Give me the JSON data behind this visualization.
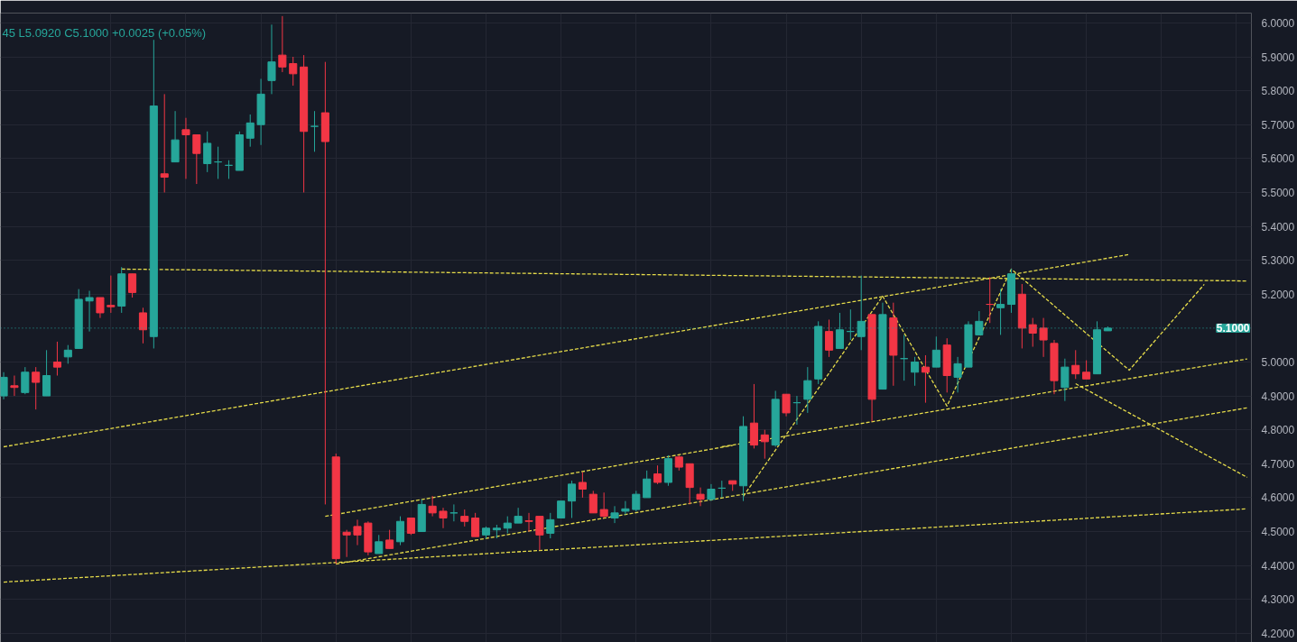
{
  "chart_data": {
    "type": "candlestick",
    "categories": [
      null,
      null,
      null,
      null,
      null,
      null,
      null,
      null,
      null,
      null,
      null,
      null,
      null,
      null,
      null,
      null,
      null,
      null,
      null,
      null,
      null,
      null,
      null,
      null,
      null,
      null,
      null,
      null,
      null,
      null,
      null,
      null,
      null,
      null,
      null,
      null,
      null,
      null,
      null,
      null,
      null,
      null,
      null,
      null,
      null,
      null,
      null,
      null,
      null,
      null,
      null,
      null,
      null,
      null,
      null,
      null,
      null,
      null,
      null,
      null,
      null,
      null,
      null,
      null,
      null,
      null,
      null,
      null,
      null,
      null,
      null,
      null,
      null,
      null,
      null,
      null,
      null,
      null,
      null,
      null,
      null,
      null,
      null,
      null,
      null,
      null,
      null,
      null,
      null,
      null,
      null,
      null,
      null,
      null,
      null,
      null,
      null,
      null,
      null,
      null,
      null,
      null,
      null,
      null,
      null,
      null,
      null,
      null,
      null,
      null,
      null,
      null,
      null,
      null,
      null,
      null,
      null
    ],
    "ohlc": [
      [
        4.9,
        4.97,
        4.89,
        4.955
      ],
      [
        4.93,
        4.96,
        4.9,
        4.925
      ],
      [
        4.91,
        4.985,
        4.905,
        4.97
      ],
      [
        4.97,
        4.985,
        4.86,
        4.94
      ],
      [
        4.9,
        5.035,
        4.9,
        4.96
      ],
      [
        5.0,
        5.06,
        4.96,
        4.985
      ],
      [
        5.015,
        5.05,
        4.995,
        5.035
      ],
      [
        5.04,
        5.215,
        5.04,
        5.185
      ],
      [
        5.18,
        5.21,
        5.09,
        5.19
      ],
      [
        5.19,
        5.19,
        5.13,
        5.145
      ],
      [
        5.167,
        5.255,
        5.145,
        5.163
      ],
      [
        5.165,
        5.28,
        5.145,
        5.26
      ],
      [
        5.26,
        5.26,
        5.19,
        5.205
      ],
      [
        5.145,
        5.16,
        5.055,
        5.095
      ],
      [
        5.075,
        5.95,
        5.04,
        5.755
      ],
      [
        5.555,
        5.79,
        5.5,
        5.545
      ],
      [
        5.59,
        5.74,
        5.59,
        5.655
      ],
      [
        5.685,
        5.72,
        5.54,
        5.67
      ],
      [
        5.67,
        5.67,
        5.525,
        5.615
      ],
      [
        5.585,
        5.68,
        5.56,
        5.645
      ],
      [
        5.59,
        5.635,
        5.54,
        5.59
      ],
      [
        5.58,
        5.595,
        5.54,
        5.58
      ],
      [
        5.565,
        5.68,
        5.565,
        5.67
      ],
      [
        5.66,
        5.73,
        5.635,
        5.705
      ],
      [
        5.7,
        5.835,
        5.64,
        5.79
      ],
      [
        5.83,
        5.995,
        5.79,
        5.885
      ],
      [
        5.905,
        6.02,
        5.855,
        5.87
      ],
      [
        5.88,
        5.9,
        5.815,
        5.85
      ],
      [
        5.87,
        5.905,
        5.5,
        5.68
      ],
      [
        5.695,
        5.74,
        5.62,
        5.695
      ],
      [
        5.735,
        5.885,
        4.58,
        5.65
      ],
      [
        4.72,
        4.73,
        4.405,
        4.42
      ],
      [
        4.498,
        4.505,
        4.425,
        4.49
      ],
      [
        4.515,
        4.535,
        4.46,
        4.49
      ],
      [
        4.525,
        4.53,
        4.43,
        4.44
      ],
      [
        4.435,
        4.49,
        4.435,
        4.47
      ],
      [
        4.475,
        4.505,
        4.45,
        4.45
      ],
      [
        4.47,
        4.545,
        4.46,
        4.53
      ],
      [
        4.54,
        4.54,
        4.49,
        4.495
      ],
      [
        4.5,
        4.595,
        4.5,
        4.58
      ],
      [
        4.575,
        4.605,
        4.545,
        4.555
      ],
      [
        4.56,
        4.57,
        4.51,
        4.54
      ],
      [
        4.555,
        4.58,
        4.53,
        4.555
      ],
      [
        4.545,
        4.565,
        4.515,
        4.53
      ],
      [
        4.54,
        4.555,
        4.485,
        4.485
      ],
      [
        4.49,
        4.515,
        4.48,
        4.51
      ],
      [
        4.505,
        4.52,
        4.48,
        4.51
      ],
      [
        4.51,
        4.545,
        4.495,
        4.525
      ],
      [
        4.525,
        4.57,
        4.525,
        4.545
      ],
      [
        4.532,
        4.555,
        4.5,
        4.53
      ],
      [
        4.545,
        4.545,
        4.445,
        4.49
      ],
      [
        4.495,
        4.555,
        4.48,
        4.535
      ],
      [
        4.54,
        4.59,
        4.54,
        4.59
      ],
      [
        4.59,
        4.65,
        4.54,
        4.64
      ],
      [
        4.645,
        4.675,
        4.6,
        4.625
      ],
      [
        4.61,
        4.62,
        4.555,
        4.555
      ],
      [
        4.565,
        4.615,
        4.54,
        4.545
      ],
      [
        4.54,
        4.575,
        4.525,
        4.555
      ],
      [
        4.56,
        4.59,
        4.55,
        4.567
      ],
      [
        4.565,
        4.62,
        4.56,
        4.61
      ],
      [
        4.6,
        4.68,
        4.6,
        4.655
      ],
      [
        4.67,
        4.695,
        4.64,
        4.645
      ],
      [
        4.645,
        4.725,
        4.635,
        4.715
      ],
      [
        4.72,
        4.725,
        4.68,
        4.69
      ],
      [
        4.7,
        4.7,
        4.58,
        4.63
      ],
      [
        4.61,
        4.63,
        4.575,
        4.595
      ],
      [
        4.595,
        4.64,
        4.59,
        4.625
      ],
      [
        4.628,
        4.65,
        4.6,
        4.628
      ],
      [
        4.65,
        4.65,
        4.62,
        4.64
      ],
      [
        4.635,
        4.84,
        4.59,
        4.81
      ],
      [
        4.82,
        4.935,
        4.745,
        4.755
      ],
      [
        4.785,
        4.8,
        4.715,
        4.765
      ],
      [
        4.755,
        4.915,
        4.75,
        4.89
      ],
      [
        4.905,
        4.905,
        4.84,
        4.85
      ],
      [
        4.88,
        4.9,
        4.815,
        4.88
      ],
      [
        4.89,
        4.985,
        4.85,
        4.945
      ],
      [
        4.95,
        5.12,
        4.935,
        5.105
      ],
      [
        5.09,
        5.125,
        5.015,
        5.035
      ],
      [
        5.04,
        5.145,
        5.04,
        5.095
      ],
      [
        5.09,
        5.155,
        5.065,
        5.09
      ],
      [
        5.075,
        5.255,
        5.035,
        5.12
      ],
      [
        5.14,
        5.14,
        4.825,
        4.89
      ],
      [
        4.92,
        5.175,
        4.92,
        5.14
      ],
      [
        5.13,
        5.175,
        4.93,
        5.02
      ],
      [
        5.01,
        5.08,
        4.945,
        5.01
      ],
      [
        4.97,
        5.015,
        4.93,
        5.0
      ],
      [
        4.985,
        5.02,
        4.88,
        4.97
      ],
      [
        4.985,
        5.075,
        4.985,
        5.035
      ],
      [
        5.05,
        5.07,
        4.91,
        4.96
      ],
      [
        4.955,
        5.015,
        4.91,
        4.995
      ],
      [
        4.985,
        5.12,
        4.985,
        5.11
      ],
      [
        5.08,
        5.15,
        5.08,
        5.12
      ],
      [
        5.17,
        5.25,
        5.115,
        5.17
      ],
      [
        5.16,
        5.215,
        5.08,
        5.17
      ],
      [
        5.17,
        5.275,
        5.145,
        5.26
      ],
      [
        5.2,
        5.23,
        5.04,
        5.1
      ],
      [
        5.11,
        5.13,
        5.045,
        5.085
      ],
      [
        5.1,
        5.13,
        5.015,
        5.065
      ],
      [
        5.055,
        5.065,
        4.905,
        4.945
      ],
      [
        4.925,
        5.01,
        4.885,
        4.985
      ],
      [
        4.99,
        5.035,
        4.95,
        4.965
      ],
      [
        4.97,
        5.005,
        4.95,
        4.95
      ],
      [
        4.965,
        5.12,
        4.965,
        5.095
      ],
      [
        5.092,
        5.105,
        5.092,
        5.1
      ],
      null,
      null,
      null,
      null,
      null,
      null,
      null,
      null,
      null,
      null,
      null,
      null,
      null
    ],
    "colors": [
      "#26a69a",
      "#f23645",
      "#26a69a",
      "#f23645",
      "#26a69a",
      "#f23645",
      "#26a69a",
      "#26a69a",
      "#26a69a",
      "#f23645",
      "#f23645",
      "#26a69a",
      "#f23645",
      "#f23645",
      "#26a69a",
      "#f23645",
      "#26a69a",
      "#f23645",
      "#f23645",
      "#26a69a",
      "#26a69a",
      "#26a69a",
      "#26a69a",
      "#26a69a",
      "#26a69a",
      "#26a69a",
      "#f23645",
      "#f23645",
      "#f23645",
      "#26a69a",
      "#f23645",
      "#f23645",
      "#f23645",
      "#f23645",
      "#f23645",
      "#26a69a",
      "#f23645",
      "#26a69a",
      "#f23645",
      "#26a69a",
      "#f23645",
      "#f23645",
      "#26a69a",
      "#f23645",
      "#f23645",
      "#26a69a",
      "#26a69a",
      "#26a69a",
      "#26a69a",
      "#f23645",
      "#f23645",
      "#26a69a",
      "#26a69a",
      "#26a69a",
      "#f23645",
      "#f23645",
      "#f23645",
      "#26a69a",
      "#26a69a",
      "#26a69a",
      "#26a69a",
      "#f23645",
      "#26a69a",
      "#f23645",
      "#f23645",
      "#f23645",
      "#26a69a",
      "#26a69a",
      "#f23645",
      "#26a69a",
      "#f23645",
      "#f23645",
      "#26a69a",
      "#f23645",
      "#26a69a",
      "#26a69a",
      "#26a69a",
      "#f23645",
      "#26a69a",
      "#26a69a",
      "#26a69a",
      "#f23645",
      "#26a69a",
      "#f23645",
      "#26a69a",
      "#26a69a",
      "#f23645",
      "#26a69a",
      "#f23645",
      "#26a69a",
      "#26a69a",
      "#26a69a",
      "#f23645",
      "#26a69a",
      "#26a69a",
      "#f23645",
      "#f23645",
      "#f23645",
      "#f23645",
      "#26a69a",
      "#f23645",
      "#f23645",
      "#26a69a",
      "#26a69a",
      null,
      null,
      null,
      null,
      null,
      null,
      null,
      null,
      null,
      null,
      null,
      null,
      null
    ],
    "series": [
      {
        "type": "line",
        "color": "#e6dc4a",
        "line_style": "dashed",
        "values": [
          null,
          null,
          null,
          null,
          null,
          null,
          null,
          null,
          null,
          null,
          null,
          5.274,
          null,
          null,
          null,
          null,
          null,
          null,
          null,
          null,
          null,
          null,
          null,
          null,
          null,
          null,
          null,
          null,
          null,
          null,
          null,
          null,
          null,
          null,
          null,
          null,
          null,
          null,
          null,
          null,
          null,
          null,
          null,
          null,
          null,
          null,
          null,
          null,
          null,
          null,
          null,
          null,
          null,
          null,
          null,
          null,
          null,
          null,
          null,
          null,
          null,
          null,
          null,
          null,
          null,
          null,
          null,
          null,
          null,
          null,
          null,
          null,
          null,
          null,
          null,
          null,
          null,
          null,
          null,
          null,
          null,
          null,
          null,
          null,
          null,
          null,
          null,
          null,
          null,
          null,
          null,
          null,
          null,
          null,
          null,
          null,
          null,
          null,
          null,
          null,
          null,
          null,
          null,
          null,
          null,
          null,
          null,
          null,
          null,
          null,
          null,
          null,
          null,
          null,
          null,
          null,
          5.239
        ]
      },
      {
        "type": "line",
        "color": "#e6dc4a",
        "line_style": "dashed",
        "values": [
          4.75,
          null,
          null,
          null,
          null,
          null,
          null,
          null,
          null,
          null,
          null,
          null,
          null,
          null,
          null,
          null,
          null,
          null,
          null,
          null,
          null,
          null,
          null,
          null,
          null,
          null,
          null,
          null,
          null,
          null,
          null,
          null,
          null,
          null,
          null,
          null,
          null,
          null,
          null,
          null,
          null,
          null,
          null,
          null,
          null,
          null,
          null,
          null,
          null,
          null,
          null,
          null,
          null,
          null,
          null,
          null,
          null,
          null,
          null,
          null,
          null,
          null,
          null,
          null,
          null,
          null,
          null,
          null,
          null,
          null,
          null,
          null,
          null,
          null,
          null,
          null,
          null,
          null,
          null,
          null,
          null,
          null,
          null,
          null,
          null,
          null,
          null,
          null,
          null,
          null,
          null,
          null,
          null,
          null,
          null,
          null,
          null,
          null,
          null,
          null,
          null,
          null,
          null,
          null,
          null,
          5.317,
          null,
          null,
          null,
          null,
          null,
          null,
          null,
          null,
          null,
          null,
          null
        ]
      },
      {
        "type": "line",
        "color": "#e6dc4a",
        "line_style": "dashed",
        "values": [
          4.351,
          null,
          null,
          null,
          null,
          null,
          null,
          null,
          null,
          null,
          null,
          null,
          null,
          null,
          null,
          null,
          null,
          null,
          null,
          null,
          null,
          null,
          null,
          null,
          null,
          null,
          null,
          null,
          null,
          null,
          null,
          null,
          null,
          null,
          null,
          null,
          null,
          null,
          null,
          null,
          null,
          null,
          null,
          null,
          null,
          null,
          null,
          null,
          null,
          null,
          null,
          null,
          null,
          null,
          null,
          null,
          null,
          null,
          null,
          null,
          null,
          null,
          null,
          null,
          null,
          null,
          null,
          null,
          null,
          null,
          null,
          null,
          null,
          null,
          null,
          null,
          null,
          null,
          null,
          null,
          null,
          null,
          null,
          null,
          null,
          null,
          null,
          null,
          null,
          null,
          null,
          null,
          null,
          null,
          null,
          null,
          null,
          null,
          null,
          null,
          null,
          null,
          null,
          null,
          null,
          null,
          null,
          null,
          null,
          null,
          null,
          null,
          null,
          null,
          null,
          null,
          4.567
        ]
      },
      {
        "type": "line",
        "color": "#e6dc4a",
        "line_style": "dashed",
        "values": [
          null,
          null,
          null,
          null,
          null,
          null,
          null,
          null,
          null,
          null,
          null,
          null,
          null,
          null,
          null,
          null,
          null,
          null,
          null,
          null,
          null,
          null,
          null,
          null,
          null,
          null,
          null,
          null,
          null,
          null,
          null,
          4.404,
          null,
          null,
          null,
          null,
          null,
          null,
          null,
          null,
          null,
          null,
          null,
          null,
          null,
          null,
          null,
          null,
          null,
          null,
          null,
          null,
          null,
          null,
          null,
          null,
          null,
          null,
          null,
          null,
          null,
          null,
          null,
          null,
          null,
          null,
          null,
          null,
          null,
          null,
          null,
          null,
          null,
          null,
          null,
          null,
          null,
          null,
          null,
          null,
          null,
          null,
          null,
          null,
          null,
          null,
          null,
          null,
          null,
          null,
          null,
          null,
          null,
          null,
          null,
          null,
          null,
          null,
          null,
          null,
          null,
          null,
          null,
          null,
          null,
          null,
          null,
          null,
          null,
          null,
          null,
          null,
          null,
          null,
          null,
          null,
          4.865
        ]
      },
      {
        "type": "line",
        "color": "#e6dc4a",
        "line_style": "dashed",
        "values": [
          null,
          null,
          null,
          null,
          null,
          null,
          null,
          null,
          null,
          null,
          null,
          null,
          null,
          null,
          null,
          null,
          null,
          null,
          null,
          null,
          null,
          null,
          null,
          null,
          null,
          null,
          null,
          null,
          null,
          null,
          4.545,
          null,
          null,
          null,
          null,
          null,
          null,
          null,
          null,
          null,
          null,
          null,
          null,
          null,
          null,
          null,
          null,
          null,
          null,
          null,
          null,
          null,
          null,
          null,
          null,
          null,
          null,
          null,
          null,
          null,
          null,
          null,
          null,
          null,
          null,
          null,
          null,
          null,
          4.754,
          null,
          null,
          null,
          null,
          null,
          null,
          null,
          null,
          null,
          null,
          null,
          null,
          null,
          null,
          null,
          null,
          null,
          null,
          null,
          null,
          null,
          null,
          null,
          null,
          null,
          null,
          null,
          null,
          null,
          null,
          null,
          null,
          null,
          null,
          null,
          null,
          null,
          null,
          null,
          null,
          null,
          null,
          null,
          null,
          null,
          null,
          null,
          null
        ]
      },
      {
        "type": "line",
        "color": "#e6dc4a",
        "line_style": "dashed",
        "values": [
          null,
          null,
          null,
          null,
          null,
          null,
          null,
          null,
          null,
          null,
          null,
          null,
          null,
          null,
          null,
          null,
          null,
          null,
          null,
          null,
          null,
          null,
          null,
          null,
          null,
          null,
          null,
          null,
          null,
          null,
          null,
          null,
          null,
          null,
          null,
          null,
          null,
          null,
          null,
          null,
          null,
          null,
          null,
          null,
          null,
          null,
          null,
          null,
          null,
          null,
          null,
          null,
          null,
          null,
          null,
          null,
          null,
          null,
          null,
          null,
          null,
          null,
          null,
          null,
          null,
          null,
          null,
          4.75,
          null,
          null,
          null,
          null,
          null,
          null,
          null,
          null,
          null,
          null,
          null,
          null,
          null,
          null,
          null,
          null,
          null,
          null,
          null,
          null,
          null,
          null,
          null,
          null,
          null,
          null,
          null,
          null,
          null,
          null,
          null,
          null,
          null,
          null,
          null,
          null,
          null,
          null,
          null,
          null,
          null,
          null,
          null,
          null,
          null,
          null,
          null,
          null,
          5.009
        ]
      },
      {
        "type": "line",
        "color": "#e6dc4a",
        "line_style": "dashed",
        "values": [
          null,
          null,
          null,
          null,
          null,
          null,
          null,
          null,
          null,
          null,
          null,
          null,
          null,
          null,
          null,
          null,
          null,
          null,
          null,
          null,
          null,
          null,
          null,
          null,
          null,
          null,
          null,
          null,
          null,
          null,
          null,
          null,
          null,
          null,
          null,
          null,
          null,
          null,
          null,
          null,
          null,
          null,
          null,
          null,
          null,
          null,
          null,
          null,
          null,
          null,
          null,
          null,
          null,
          null,
          null,
          null,
          null,
          null,
          null,
          null,
          null,
          null,
          null,
          null,
          null,
          null,
          null,
          null,
          null,
          4.604,
          null,
          null,
          null,
          null,
          null,
          null,
          null,
          null,
          null,
          null,
          null,
          null,
          5.194,
          null,
          null,
          null,
          null,
          null,
          4.87,
          null,
          null,
          null,
          null,
          null,
          5.274,
          null,
          null,
          null,
          null,
          null,
          null,
          null,
          null,
          null,
          null,
          4.976,
          null,
          null,
          null,
          null,
          null,
          null,
          5.229,
          null,
          null,
          null,
          null
        ]
      },
      {
        "type": "line",
        "color": "#e6dc4a",
        "line_style": "dashed",
        "values": [
          null,
          null,
          null,
          null,
          null,
          null,
          null,
          null,
          null,
          null,
          null,
          null,
          null,
          null,
          null,
          null,
          null,
          null,
          null,
          null,
          null,
          null,
          null,
          null,
          null,
          null,
          null,
          null,
          null,
          null,
          null,
          null,
          null,
          null,
          null,
          null,
          null,
          null,
          null,
          null,
          null,
          null,
          null,
          null,
          null,
          null,
          null,
          null,
          null,
          null,
          null,
          null,
          null,
          null,
          null,
          null,
          null,
          null,
          null,
          null,
          null,
          null,
          null,
          null,
          null,
          null,
          null,
          null,
          null,
          null,
          null,
          null,
          null,
          null,
          null,
          null,
          null,
          null,
          null,
          null,
          null,
          null,
          null,
          null,
          null,
          null,
          null,
          null,
          null,
          null,
          null,
          null,
          null,
          null,
          null,
          null,
          null,
          null,
          null,
          null,
          4.936,
          null,
          null,
          null,
          null,
          null,
          null,
          null,
          null,
          null,
          null,
          null,
          null,
          null,
          null,
          null,
          4.66
        ]
      }
    ],
    "ylim": [
      4.173,
      6.029
    ],
    "yticks": [
      {
        "value": 4.2,
        "label": "4.2000"
      },
      {
        "value": 4.3,
        "label": "4.3000"
      },
      {
        "value": 4.4,
        "label": "4.4000"
      },
      {
        "value": 4.5,
        "label": "4.5000"
      },
      {
        "value": 4.6,
        "label": "4.6000"
      },
      {
        "value": 4.7,
        "label": "4.7000"
      },
      {
        "value": 4.8,
        "label": "4.8000"
      },
      {
        "value": 4.9,
        "label": "4.9000"
      },
      {
        "value": 5.0,
        "label": "5.0000"
      },
      {
        "value": 5.2,
        "label": "5.2000"
      },
      {
        "value": 5.3,
        "label": "5.3000"
      },
      {
        "value": 5.4,
        "label": "5.4000"
      },
      {
        "value": 5.5,
        "label": "5.5000"
      },
      {
        "value": 5.6,
        "label": "5.6000"
      },
      {
        "value": 5.7,
        "label": "5.7000"
      },
      {
        "value": 5.8,
        "label": "5.8000"
      },
      {
        "value": 5.9,
        "label": "5.9000"
      },
      {
        "value": 6.0,
        "label": "6.0000"
      }
    ],
    "ref_lines": [
      {
        "axis": "y",
        "value": 5.1,
        "label": "5.1000",
        "color": "#26a69a",
        "line_style": "dotted"
      }
    ],
    "annotations": [
      "45 L5.0920 C5.1000 +0.0025 (+0.05%)"
    ],
    "grid": true,
    "tick_labels": "y"
  }
}
